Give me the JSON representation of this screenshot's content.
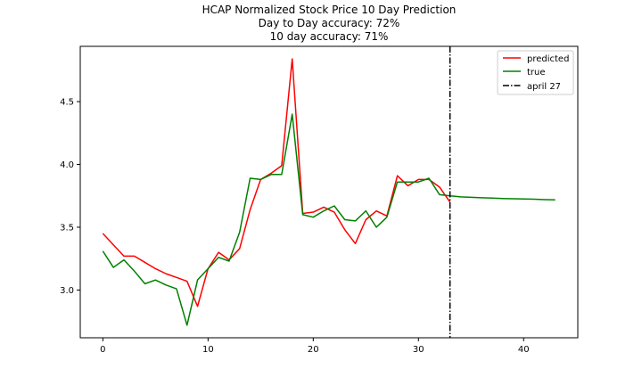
{
  "chart_data": {
    "type": "line",
    "title_lines": [
      "HCAP Normalized Stock Price 10 Day Prediction",
      "Day to Day accuracy: 72%",
      "10 day accuracy: 71%"
    ],
    "xlabel": "",
    "ylabel": "",
    "xlim": [
      -2.15,
      45.15
    ],
    "ylim": [
      2.62,
      4.94
    ],
    "xticks": [
      0,
      10,
      20,
      30,
      40
    ],
    "yticks": [
      3.0,
      3.5,
      4.0,
      4.5
    ],
    "xtick_labels": [
      "0",
      "10",
      "20",
      "30",
      "40"
    ],
    "ytick_labels": [
      "3.0",
      "3.5",
      "4.0",
      "4.5"
    ],
    "grid": false,
    "legend_position": "top-right",
    "series": [
      {
        "name": "predicted",
        "color": "#ff0000",
        "x": [
          0,
          1,
          2,
          3,
          4,
          5,
          6,
          7,
          8,
          9,
          10,
          11,
          12,
          13,
          14,
          15,
          16,
          17,
          18,
          19,
          20,
          21,
          22,
          23,
          24,
          25,
          26,
          27,
          28,
          29,
          30,
          31,
          32,
          33
        ],
        "values": [
          3.45,
          3.36,
          3.27,
          3.27,
          3.22,
          3.17,
          3.13,
          3.1,
          3.07,
          2.87,
          3.17,
          3.3,
          3.24,
          3.33,
          3.64,
          3.88,
          3.93,
          3.99,
          4.84,
          3.61,
          3.62,
          3.66,
          3.62,
          3.48,
          3.37,
          3.56,
          3.63,
          3.59,
          3.91,
          3.83,
          3.88,
          3.88,
          3.82,
          3.7
        ]
      },
      {
        "name": "true",
        "color": "#008000",
        "x": [
          0,
          1,
          2,
          3,
          4,
          5,
          6,
          7,
          8,
          9,
          10,
          11,
          12,
          13,
          14,
          15,
          16,
          17,
          18,
          19,
          20,
          21,
          22,
          23,
          24,
          25,
          26,
          27,
          28,
          29,
          30,
          31,
          32,
          33,
          34,
          35,
          36,
          37,
          38,
          39,
          40,
          41,
          42,
          43
        ],
        "values": [
          3.31,
          3.18,
          3.24,
          3.15,
          3.05,
          3.08,
          3.04,
          3.01,
          2.72,
          3.08,
          3.17,
          3.26,
          3.23,
          3.46,
          3.89,
          3.88,
          3.92,
          3.92,
          4.4,
          3.6,
          3.58,
          3.63,
          3.67,
          3.56,
          3.55,
          3.63,
          3.5,
          3.58,
          3.86,
          3.86,
          3.86,
          3.89,
          3.76,
          3.75,
          3.742,
          3.738,
          3.735,
          3.732,
          3.729,
          3.727,
          3.725,
          3.723,
          3.72,
          3.718
        ]
      }
    ],
    "vline": {
      "name": "april 27",
      "x": 33,
      "color": "#000000",
      "style": "dash-dot"
    }
  }
}
